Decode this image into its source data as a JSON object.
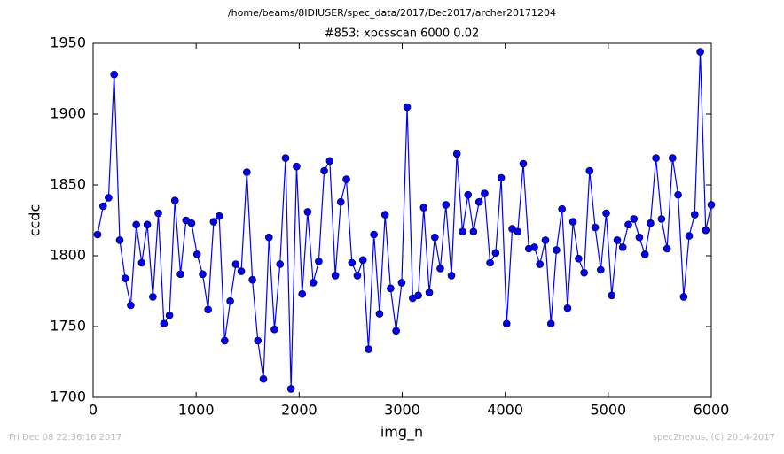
{
  "chart_data": {
    "type": "line",
    "suptitle": "/home/beams/8IDIUSER/spec_data/2017/Dec2017/archer20171204",
    "title": "#853: xpcsscan 6000 0.02",
    "x_label": "img_n",
    "y_label": "ccdc",
    "footer_left": "Fri Dec 08 22:36:16 2017",
    "footer_right": "spec2nexus, (C) 2014-2017",
    "color": "#0000ff",
    "x": [
      43,
      97,
      150,
      204,
      258,
      311,
      365,
      419,
      472,
      526,
      580,
      633,
      687,
      741,
      794,
      848,
      902,
      955,
      1009,
      1063,
      1116,
      1170,
      1224,
      1277,
      1331,
      1385,
      1438,
      1492,
      1546,
      1599,
      1653,
      1707,
      1760,
      1814,
      1868,
      1921,
      1975,
      2029,
      2082,
      2136,
      2190,
      2243,
      2297,
      2351,
      2404,
      2458,
      2512,
      2565,
      2619,
      2673,
      2726,
      2780,
      2834,
      2887,
      2941,
      2995,
      3048,
      3102,
      3156,
      3209,
      3263,
      3317,
      3370,
      3424,
      3478,
      3531,
      3585,
      3639,
      3692,
      3746,
      3800,
      3853,
      3907,
      3961,
      4014,
      4068,
      4122,
      4175,
      4229,
      4283,
      4336,
      4390,
      4444,
      4497,
      4551,
      4605,
      4658,
      4712,
      4766,
      4819,
      4873,
      4927,
      4980,
      5034,
      5088,
      5141,
      5195,
      5249,
      5302,
      5356,
      5410,
      5463,
      5517,
      5571,
      5624,
      5678,
      5732,
      5785,
      5839,
      5893,
      5946,
      6000
    ],
    "series": [
      {
        "name": "ccdc",
        "color": "#0000ff",
        "values": [
          1815,
          1835,
          1841,
          1928,
          1811,
          1784,
          1765,
          1822,
          1795,
          1822,
          1771,
          1830,
          1752,
          1758,
          1839,
          1787,
          1825,
          1823,
          1801,
          1787,
          1762,
          1824,
          1828,
          1740,
          1768,
          1794,
          1789,
          1859,
          1783,
          1740,
          1713,
          1813,
          1748,
          1794,
          1869,
          1706,
          1863,
          1773,
          1831,
          1781,
          1796,
          1860,
          1867,
          1786,
          1838,
          1854,
          1795,
          1786,
          1797,
          1734,
          1815,
          1759,
          1829,
          1777,
          1747,
          1781,
          1905,
          1770,
          1772,
          1834,
          1774,
          1813,
          1791,
          1836,
          1786,
          1872,
          1817,
          1843,
          1817,
          1838,
          1844,
          1795,
          1802,
          1855,
          1752,
          1819,
          1817,
          1865,
          1805,
          1806,
          1794,
          1811,
          1752,
          1804,
          1833,
          1763,
          1824,
          1798,
          1788,
          1860,
          1820,
          1790,
          1830,
          1772,
          1811,
          1806,
          1822,
          1826,
          1813,
          1801,
          1823,
          1869,
          1826,
          1805,
          1869,
          1843,
          1771,
          1814,
          1829,
          1944,
          1818,
          1836
        ]
      }
    ],
    "xlim": [
      0,
      6000
    ],
    "xticks": [
      0,
      1000,
      2000,
      3000,
      4000,
      5000,
      6000
    ],
    "ylim": [
      1700,
      1950
    ],
    "yticks": [
      1700,
      1750,
      1800,
      1850,
      1900,
      1950
    ]
  }
}
